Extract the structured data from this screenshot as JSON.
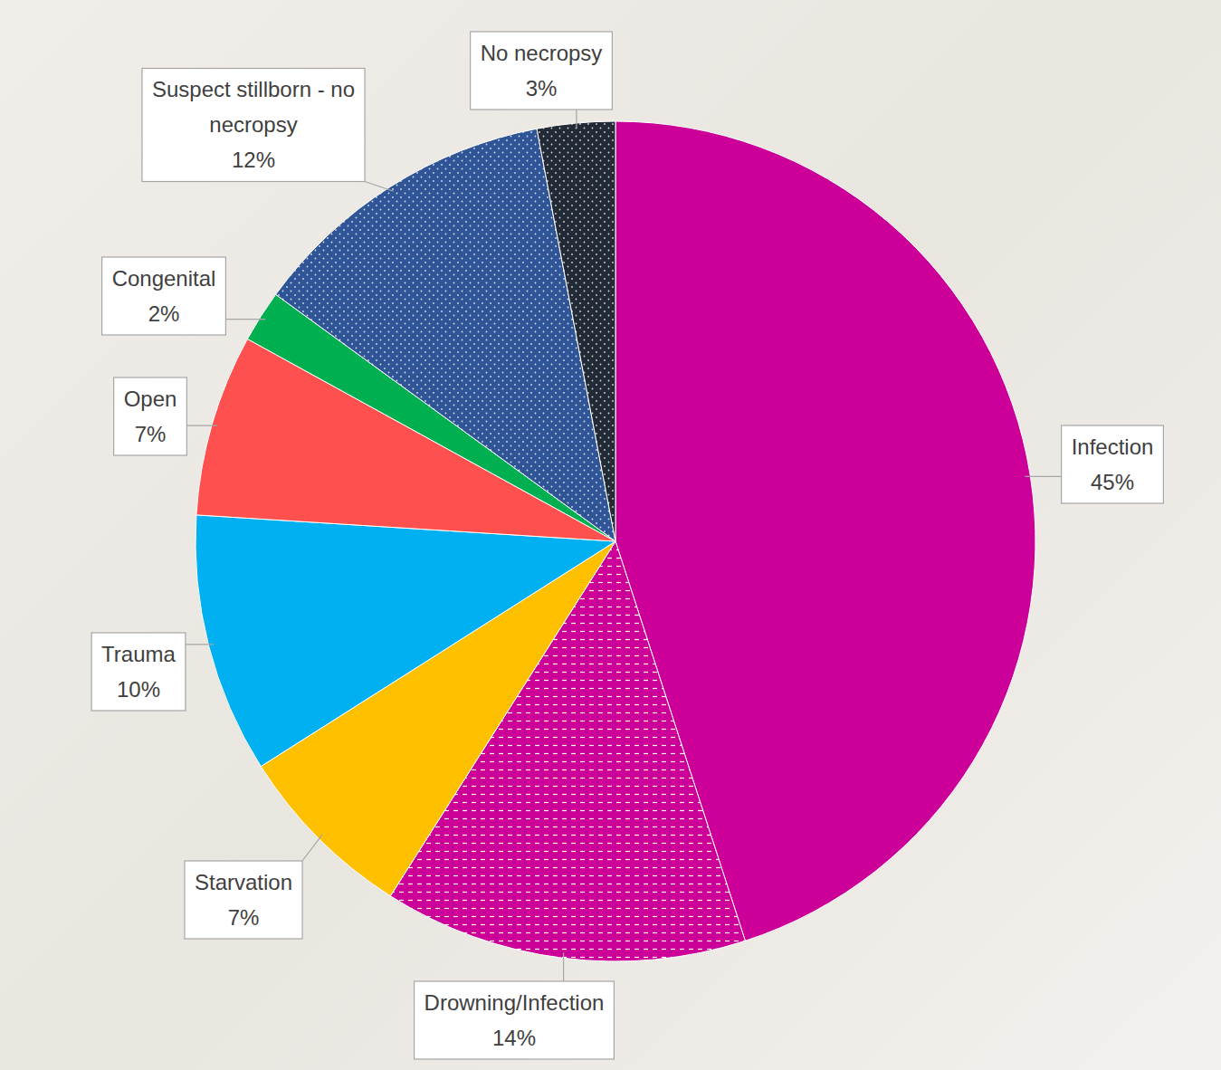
{
  "chart_data": {
    "type": "pie",
    "categories": [
      "Infection",
      "Drowning/Infection",
      "Starvation",
      "Trauma",
      "Open",
      "Congenital",
      "Suspect stillborn - no necropsy",
      "No necropsy"
    ],
    "values": [
      45,
      14,
      7,
      10,
      7,
      2,
      12,
      3
    ],
    "value_labels": [
      "45%",
      "14%",
      "7%",
      "10%",
      "7%",
      "2%",
      "12%",
      "3%"
    ],
    "colors": [
      "#cc0099",
      "#cc0099",
      "#ffc000",
      "#00b0f0",
      "#ff5050",
      "#00b050",
      "#2f5597",
      "#222a35"
    ],
    "data_labels": true
  }
}
